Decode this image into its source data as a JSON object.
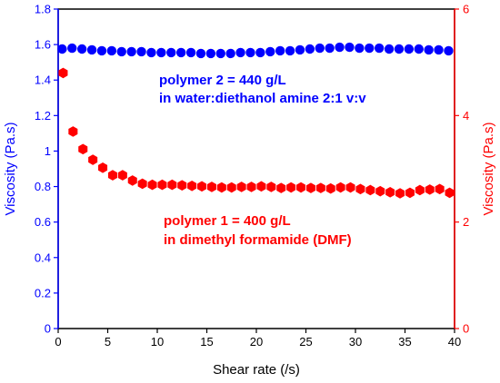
{
  "chart_data": {
    "type": "scatter",
    "xlabel": "Shear rate (/s)",
    "ylabel_left": "Viscosity (Pa.s)",
    "ylabel_right": "Viscosity (Pa.s)",
    "xlim": [
      0,
      40
    ],
    "ylim_left": [
      0,
      1.8
    ],
    "ylim_right": [
      0,
      6
    ],
    "x_ticks": [
      0,
      5,
      10,
      15,
      20,
      25,
      30,
      35,
      40
    ],
    "y_left_ticks": [
      0,
      0.2,
      0.4,
      0.6,
      0.8,
      1,
      1.2,
      1.4,
      1.6,
      1.8
    ],
    "y_right_ticks": [
      0,
      2,
      4,
      6
    ],
    "colors": {
      "left": "#0000ff",
      "right": "#ff0000"
    },
    "grid": false,
    "series": [
      {
        "axis": "left",
        "marker": "circle",
        "color": "#0000ff",
        "x": [
          0.4,
          1.4,
          2.4,
          3.4,
          4.4,
          5.4,
          6.4,
          7.4,
          8.4,
          9.4,
          10.4,
          11.4,
          12.4,
          13.4,
          14.4,
          15.4,
          16.4,
          17.4,
          18.4,
          19.4,
          20.4,
          21.4,
          22.4,
          23.4,
          24.4,
          25.4,
          26.4,
          27.4,
          28.4,
          29.4,
          30.4,
          31.4,
          32.4,
          33.4,
          34.4,
          35.4,
          36.4,
          37.4,
          38.4,
          39.4
        ],
        "y": [
          1.575,
          1.58,
          1.575,
          1.57,
          1.565,
          1.565,
          1.56,
          1.56,
          1.56,
          1.555,
          1.555,
          1.555,
          1.555,
          1.555,
          1.55,
          1.55,
          1.55,
          1.55,
          1.555,
          1.555,
          1.555,
          1.56,
          1.565,
          1.565,
          1.57,
          1.575,
          1.58,
          1.58,
          1.585,
          1.585,
          1.58,
          1.58,
          1.58,
          1.575,
          1.575,
          1.575,
          1.575,
          1.57,
          1.57,
          1.565
        ]
      },
      {
        "axis": "right",
        "marker": "hexagon",
        "color": "#ff0000",
        "x": [
          0.5,
          1.5,
          2.5,
          3.5,
          4.5,
          5.5,
          6.5,
          7.5,
          8.5,
          9.5,
          10.5,
          11.5,
          12.5,
          13.5,
          14.5,
          15.5,
          16.5,
          17.5,
          18.5,
          19.5,
          20.5,
          21.5,
          22.5,
          23.5,
          24.5,
          25.5,
          26.5,
          27.5,
          28.5,
          29.5,
          30.5,
          31.5,
          32.5,
          33.5,
          34.5,
          35.5,
          36.5,
          37.5,
          38.5,
          39.5
        ],
        "y": [
          4.8,
          3.7,
          3.37,
          3.17,
          3.02,
          2.88,
          2.88,
          2.78,
          2.72,
          2.7,
          2.7,
          2.7,
          2.69,
          2.68,
          2.67,
          2.66,
          2.65,
          2.65,
          2.66,
          2.66,
          2.67,
          2.66,
          2.64,
          2.65,
          2.65,
          2.64,
          2.64,
          2.63,
          2.65,
          2.65,
          2.62,
          2.6,
          2.58,
          2.56,
          2.54,
          2.55,
          2.6,
          2.61,
          2.62,
          2.55
        ]
      }
    ],
    "annotations": [
      {
        "id": "blue1",
        "text": "polymer 2 = 440 g/L",
        "color": "#0000ff"
      },
      {
        "id": "blue2",
        "text": "in water:diethanol amine 2:1 v:v",
        "color": "#0000ff"
      },
      {
        "id": "red1",
        "text": "polymer 1 = 400 g/L",
        "color": "#ff0000"
      },
      {
        "id": "red2",
        "text": "in dimethyl formamide (DMF)",
        "color": "#ff0000"
      }
    ]
  }
}
